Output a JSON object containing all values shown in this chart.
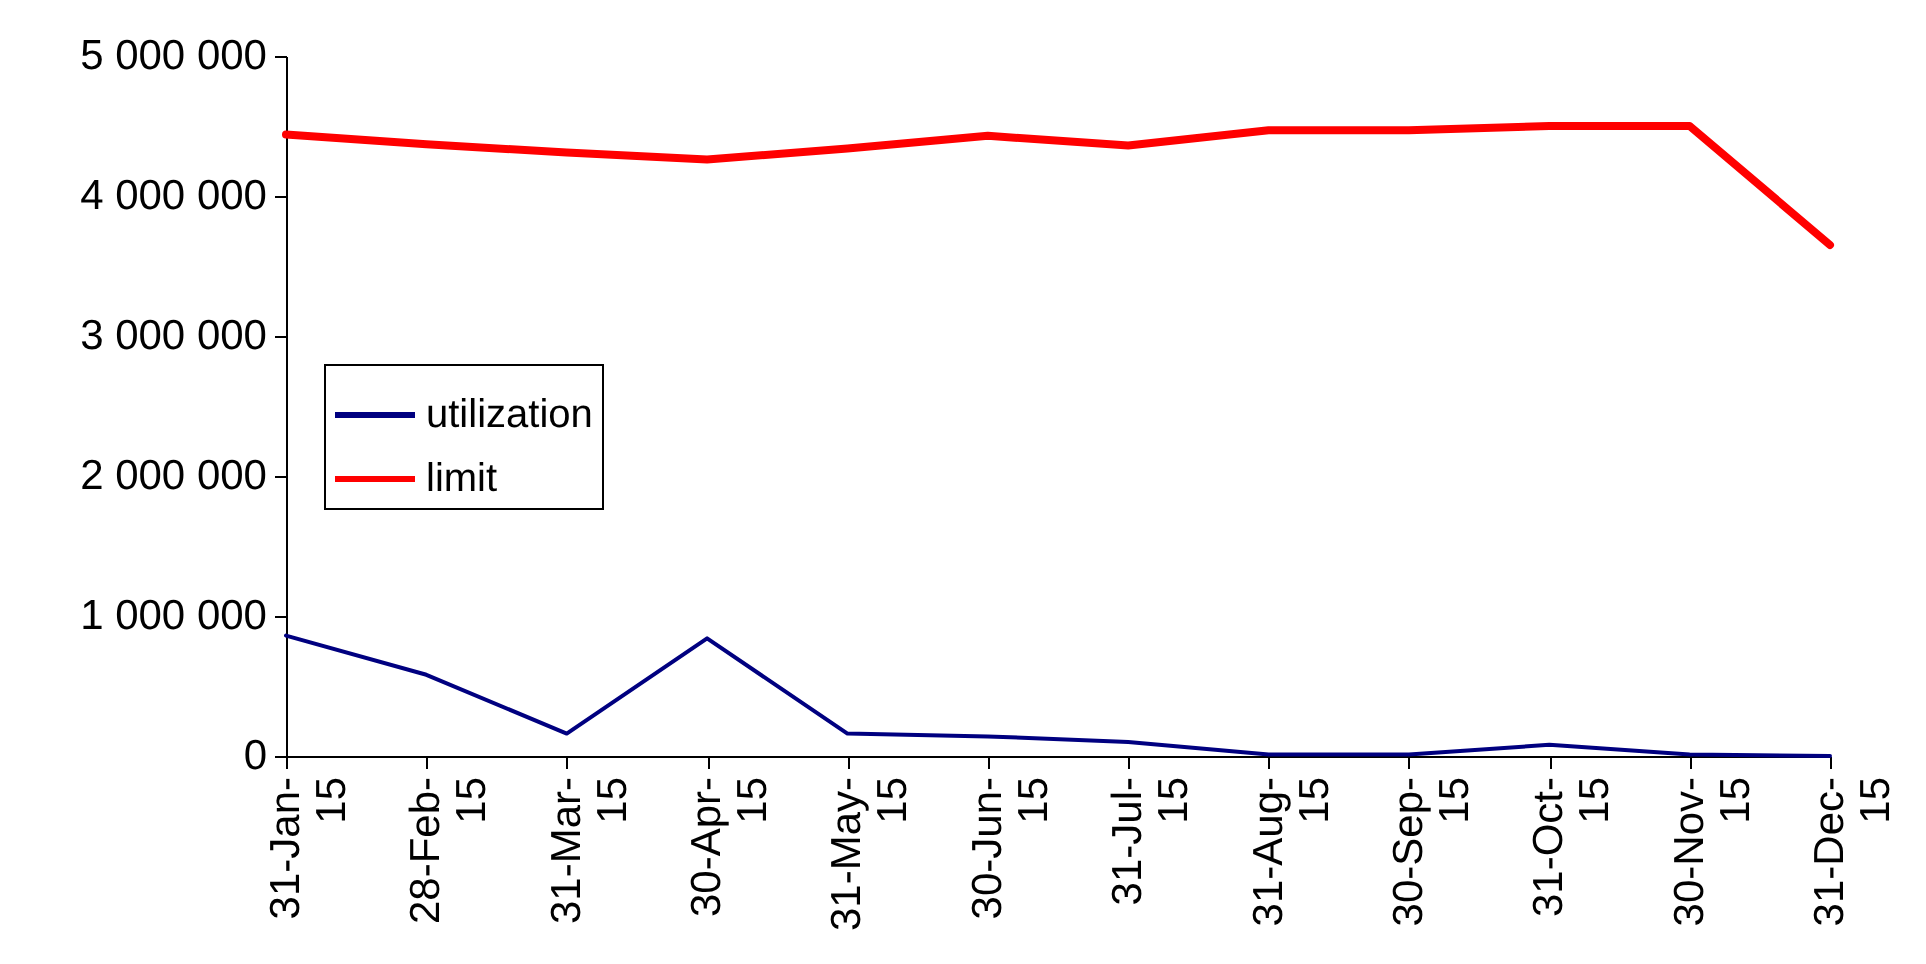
{
  "chart_data": {
    "type": "line",
    "categories": [
      "31-Jan-15",
      "28-Feb-15",
      "31-Mar-15",
      "30-Apr-15",
      "31-May-15",
      "30-Jun-15",
      "31-Jul-15",
      "31-Aug-15",
      "30-Sep-15",
      "31-Oct-15",
      "30-Nov-15",
      "31-Dec-15"
    ],
    "series": [
      {
        "name": "utilization",
        "color": "#000080",
        "values": [
          860000,
          580000,
          160000,
          840000,
          160000,
          140000,
          100000,
          10000,
          10000,
          80000,
          10000,
          0
        ]
      },
      {
        "name": "limit",
        "color": "#ff0000",
        "values": [
          4440000,
          4370000,
          4310000,
          4260000,
          4340000,
          4430000,
          4360000,
          4470000,
          4470000,
          4500000,
          4500000,
          3650000
        ]
      }
    ],
    "ylim": [
      0,
      5000000
    ],
    "yticks": [
      {
        "value": 0,
        "label": "0"
      },
      {
        "value": 1000000,
        "label": "1 000 000"
      },
      {
        "value": 2000000,
        "label": "2 000 000"
      },
      {
        "value": 3000000,
        "label": "3 000 000"
      },
      {
        "value": 4000000,
        "label": "4 000 000"
      },
      {
        "value": 5000000,
        "label": "5 000 000"
      }
    ],
    "grid": false,
    "legend": "left",
    "marker": "none"
  }
}
